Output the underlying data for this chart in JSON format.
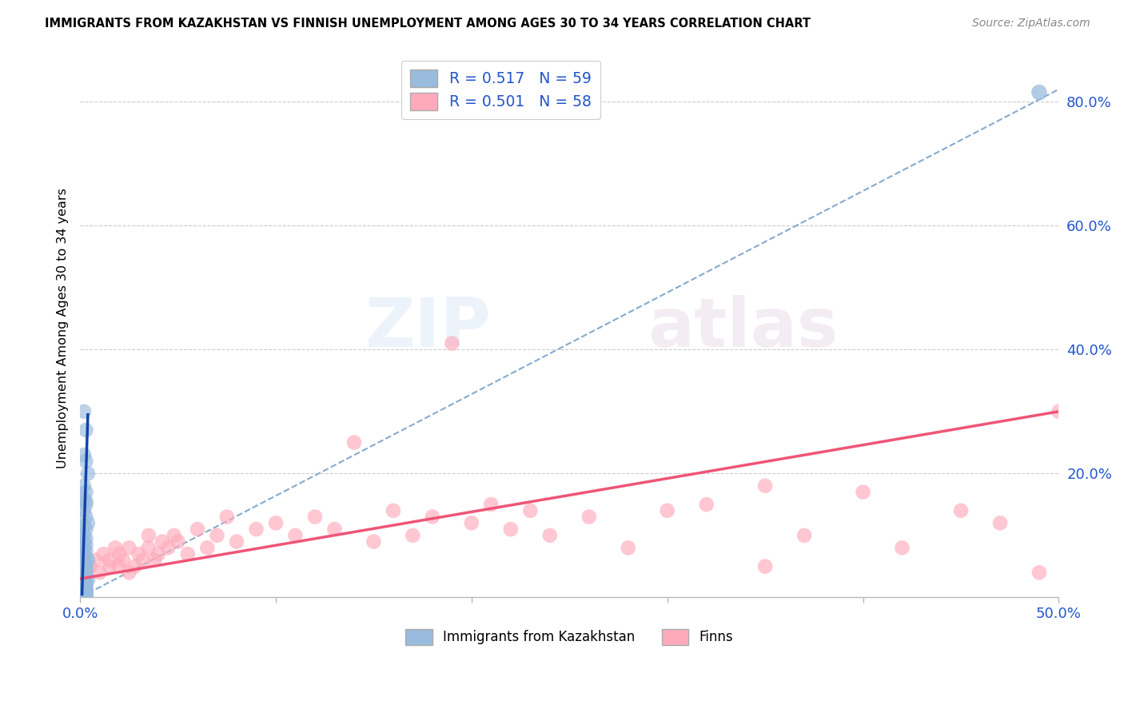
{
  "title": "IMMIGRANTS FROM KAZAKHSTAN VS FINNISH UNEMPLOYMENT AMONG AGES 30 TO 34 YEARS CORRELATION CHART",
  "source": "Source: ZipAtlas.com",
  "ylabel": "Unemployment Among Ages 30 to 34 years",
  "xlim": [
    0.0,
    0.5
  ],
  "ylim": [
    0.0,
    0.87
  ],
  "yticks": [
    0.0,
    0.2,
    0.4,
    0.6,
    0.8
  ],
  "ytick_labels": [
    "",
    "20.0%",
    "40.0%",
    "60.0%",
    "80.0%"
  ],
  "legend_blue_label": "R = 0.517   N = 59",
  "legend_pink_label": "R = 0.501   N = 58",
  "legend1_bottom": "Immigrants from Kazakhstan",
  "legend2_bottom": "Finns",
  "blue_color": "#99BBDD",
  "pink_color": "#FFAABB",
  "blue_edge_color": "#99BBDD",
  "pink_edge_color": "#FFAABB",
  "blue_line_color": "#1144AA",
  "pink_line_color": "#EE5577",
  "blue_dash_color": "#88AACC",
  "label_color": "#2255CC",
  "watermark_zip": "ZIP",
  "watermark_atlas": "atlas",
  "blue_scatter_x": [
    0.002,
    0.003,
    0.002,
    0.003,
    0.004,
    0.002,
    0.003,
    0.002,
    0.003,
    0.003,
    0.002,
    0.003,
    0.004,
    0.002,
    0.003,
    0.002,
    0.003,
    0.002,
    0.003,
    0.002,
    0.003,
    0.002,
    0.003,
    0.004,
    0.002,
    0.003,
    0.002,
    0.003,
    0.002,
    0.003,
    0.002,
    0.003,
    0.002,
    0.003,
    0.002,
    0.003,
    0.004,
    0.002,
    0.003,
    0.002,
    0.003,
    0.002,
    0.003,
    0.002,
    0.003,
    0.002,
    0.003,
    0.002,
    0.003,
    0.002,
    0.003,
    0.002,
    0.003,
    0.002,
    0.003,
    0.002,
    0.003,
    0.002,
    0.003
  ],
  "blue_scatter_y": [
    0.3,
    0.27,
    0.23,
    0.22,
    0.2,
    0.18,
    0.17,
    0.16,
    0.155,
    0.15,
    0.14,
    0.13,
    0.12,
    0.115,
    0.11,
    0.1,
    0.095,
    0.09,
    0.085,
    0.08,
    0.075,
    0.07,
    0.065,
    0.06,
    0.058,
    0.055,
    0.052,
    0.05,
    0.048,
    0.045,
    0.042,
    0.04,
    0.038,
    0.035,
    0.033,
    0.03,
    0.028,
    0.025,
    0.022,
    0.02,
    0.018,
    0.016,
    0.014,
    0.012,
    0.01,
    0.009,
    0.008,
    0.007,
    0.006,
    0.005,
    0.005,
    0.004,
    0.004,
    0.003,
    0.003,
    0.002,
    0.002,
    0.001,
    0.001
  ],
  "pink_scatter_x": [
    0.005,
    0.008,
    0.01,
    0.012,
    0.015,
    0.015,
    0.018,
    0.02,
    0.02,
    0.022,
    0.025,
    0.025,
    0.028,
    0.03,
    0.032,
    0.035,
    0.035,
    0.038,
    0.04,
    0.042,
    0.045,
    0.048,
    0.05,
    0.055,
    0.06,
    0.065,
    0.07,
    0.075,
    0.08,
    0.09,
    0.1,
    0.11,
    0.12,
    0.13,
    0.14,
    0.15,
    0.16,
    0.17,
    0.18,
    0.2,
    0.21,
    0.22,
    0.23,
    0.24,
    0.26,
    0.28,
    0.3,
    0.32,
    0.35,
    0.37,
    0.4,
    0.42,
    0.45,
    0.47,
    0.49,
    0.5,
    0.35,
    0.19
  ],
  "pink_scatter_y": [
    0.05,
    0.06,
    0.04,
    0.07,
    0.05,
    0.06,
    0.08,
    0.05,
    0.07,
    0.06,
    0.04,
    0.08,
    0.05,
    0.07,
    0.06,
    0.08,
    0.1,
    0.06,
    0.07,
    0.09,
    0.08,
    0.1,
    0.09,
    0.07,
    0.11,
    0.08,
    0.1,
    0.13,
    0.09,
    0.11,
    0.12,
    0.1,
    0.13,
    0.11,
    0.25,
    0.09,
    0.14,
    0.1,
    0.13,
    0.12,
    0.15,
    0.11,
    0.14,
    0.1,
    0.13,
    0.08,
    0.14,
    0.15,
    0.05,
    0.1,
    0.17,
    0.08,
    0.14,
    0.12,
    0.04,
    0.3,
    0.18,
    0.41
  ],
  "blue_solid_trend_x": [
    0.001,
    0.004
  ],
  "blue_solid_trend_y": [
    0.005,
    0.295
  ],
  "blue_dash_trend_x": [
    0.0,
    0.5
  ],
  "blue_dash_trend_y": [
    0.0,
    0.82
  ],
  "pink_trend_x": [
    0.0,
    0.5
  ],
  "pink_trend_y": [
    0.03,
    0.3
  ],
  "top_right_blue_x": [
    0.49
  ],
  "top_right_blue_y": [
    0.815
  ]
}
